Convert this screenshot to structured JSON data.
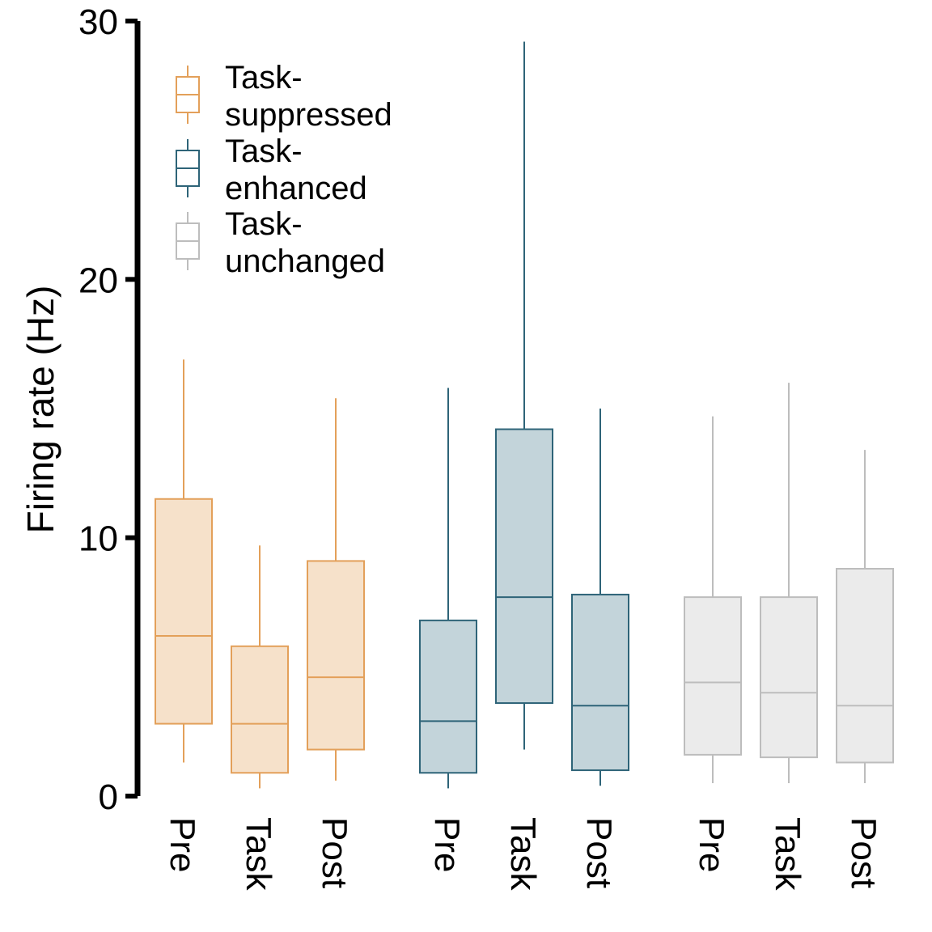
{
  "chart_data": {
    "type": "boxplot",
    "ylabel": "Firing rate (Hz)",
    "xlabel": "",
    "ylim": [
      0,
      30
    ],
    "yticks": [
      0,
      10,
      20,
      30
    ],
    "grid": false,
    "legend_position": "top-left",
    "categories": [
      "Pre",
      "Task",
      "Post"
    ],
    "series": [
      {
        "name": "Task-suppressed",
        "legend_lines": [
          "Task-",
          "suppressed"
        ],
        "color": "#E3A05A",
        "fill": "#F6E1CA",
        "boxes": [
          {
            "category": "Pre",
            "whisker_low": 1.3,
            "q1": 2.8,
            "median": 6.2,
            "q3": 11.5,
            "whisker_high": 16.9
          },
          {
            "category": "Task",
            "whisker_low": 0.3,
            "q1": 0.9,
            "median": 2.8,
            "q3": 5.8,
            "whisker_high": 9.7
          },
          {
            "category": "Post",
            "whisker_low": 0.6,
            "q1": 1.8,
            "median": 4.6,
            "q3": 9.1,
            "whisker_high": 15.4
          }
        ]
      },
      {
        "name": "Task-enhanced",
        "legend_lines": [
          "Task-",
          "enhanced"
        ],
        "color": "#2E6478",
        "fill": "#C3D4DA",
        "boxes": [
          {
            "category": "Pre",
            "whisker_low": 0.3,
            "q1": 0.9,
            "median": 2.9,
            "q3": 6.8,
            "whisker_high": 15.8
          },
          {
            "category": "Task",
            "whisker_low": 1.8,
            "q1": 3.6,
            "median": 7.7,
            "q3": 14.2,
            "whisker_high": 29.2
          },
          {
            "category": "Post",
            "whisker_low": 0.4,
            "q1": 1.0,
            "median": 3.5,
            "q3": 7.8,
            "whisker_high": 15.0
          }
        ]
      },
      {
        "name": "Task-unchanged",
        "legend_lines": [
          "Task-",
          "unchanged"
        ],
        "color": "#BDBDBD",
        "fill": "#EBEBEB",
        "boxes": [
          {
            "category": "Pre",
            "whisker_low": 0.5,
            "q1": 1.6,
            "median": 4.4,
            "q3": 7.7,
            "whisker_high": 14.7
          },
          {
            "category": "Task",
            "whisker_low": 0.5,
            "q1": 1.5,
            "median": 4.0,
            "q3": 7.7,
            "whisker_high": 16.0
          },
          {
            "category": "Post",
            "whisker_low": 0.5,
            "q1": 1.3,
            "median": 3.5,
            "q3": 8.8,
            "whisker_high": 13.4
          }
        ]
      }
    ]
  }
}
